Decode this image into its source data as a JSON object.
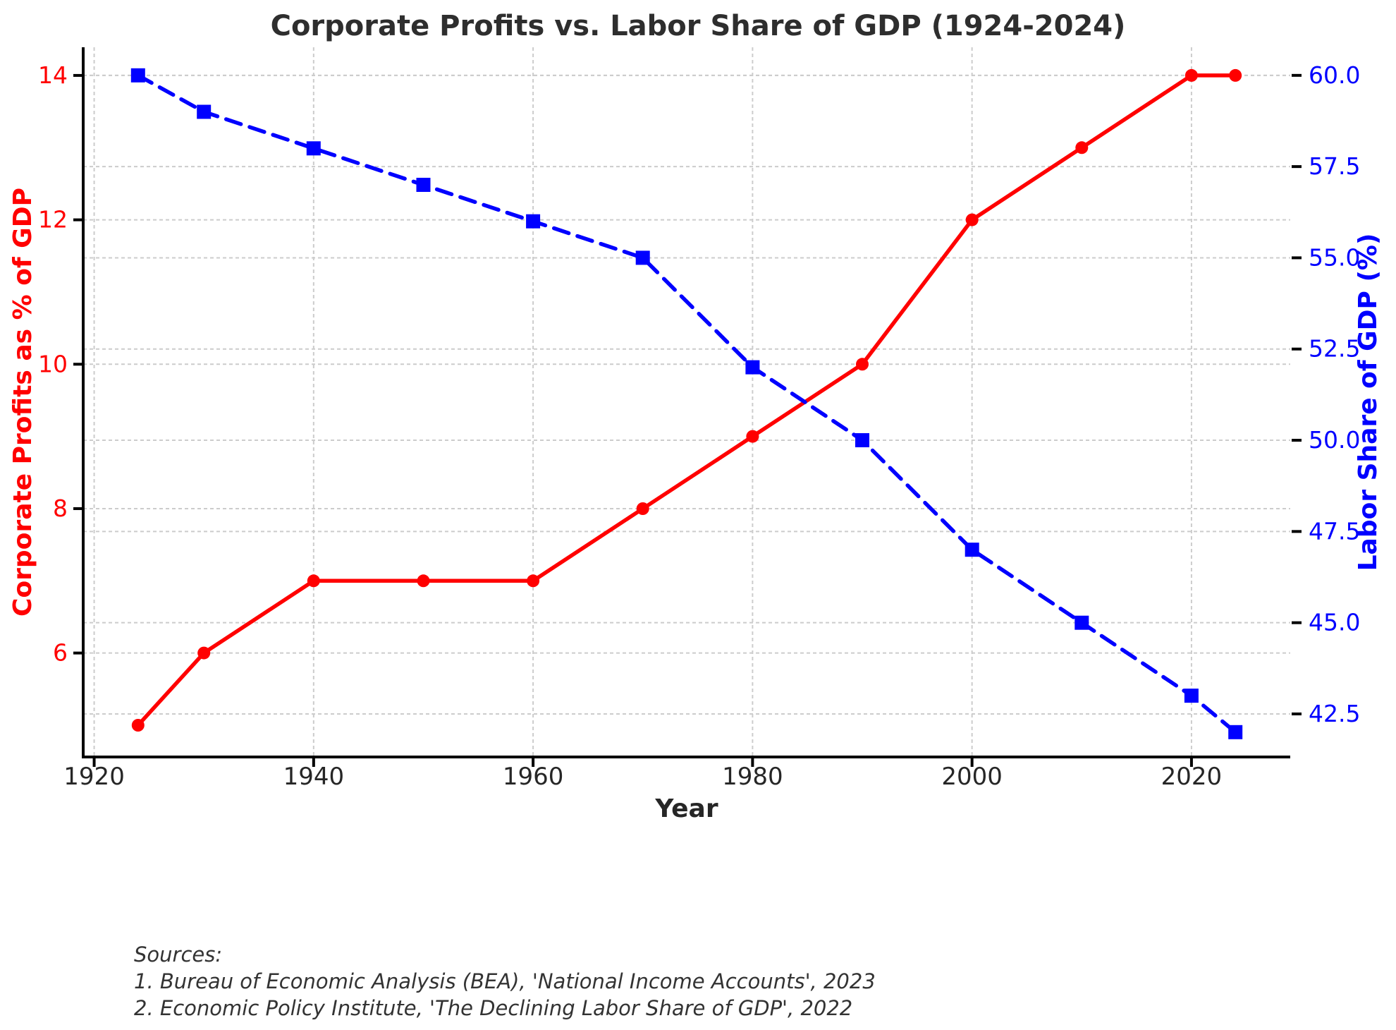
{
  "chart_data": {
    "type": "line",
    "title": "Corporate Profits vs. Labor Share of GDP (1924-2024)",
    "xlabel": "Year",
    "ylabel_left": "Corporate Profits as % of GDP",
    "ylabel_right": "Labor Share of GDP (%)",
    "x": [
      1924,
      1930,
      1940,
      1950,
      1960,
      1970,
      1980,
      1990,
      2000,
      2010,
      2020,
      2024
    ],
    "series": [
      {
        "name": "Corporate Profits as % of GDP",
        "yaxis": "left",
        "color": "#ff0000",
        "line_style": "solid",
        "marker": "circle",
        "values": [
          5.0,
          6.0,
          7.0,
          7.0,
          7.0,
          8.0,
          9.0,
          10.0,
          12.0,
          13.0,
          14.0,
          14.0
        ]
      },
      {
        "name": "Labor Share of GDP (%)",
        "yaxis": "right",
        "color": "#0000ff",
        "line_style": "dashed",
        "marker": "square",
        "values": [
          60.0,
          59.0,
          58.0,
          57.0,
          56.0,
          55.0,
          52.0,
          50.0,
          47.0,
          45.0,
          43.0,
          42.0
        ]
      }
    ],
    "xticks": [
      {
        "value": 1920,
        "label": "1920"
      },
      {
        "value": 1940,
        "label": "1940"
      },
      {
        "value": 1960,
        "label": "1960"
      },
      {
        "value": 1980,
        "label": "1980"
      },
      {
        "value": 2000,
        "label": "2000"
      },
      {
        "value": 2020,
        "label": "2020"
      }
    ],
    "yticks_left": [
      {
        "value": 14,
        "label": "14"
      },
      {
        "value": 12,
        "label": "12"
      },
      {
        "value": 10,
        "label": "10"
      },
      {
        "value": 8,
        "label": "8"
      },
      {
        "value": 6,
        "label": "6"
      }
    ],
    "yticks_right": [
      {
        "value": 60.0,
        "label": "60.0"
      },
      {
        "value": 57.5,
        "label": "57.5"
      },
      {
        "value": 55.0,
        "label": "55.0"
      },
      {
        "value": 52.5,
        "label": "52.5"
      },
      {
        "value": 50.0,
        "label": "50.0"
      },
      {
        "value": 47.5,
        "label": "47.5"
      },
      {
        "value": 45.0,
        "label": "45.0"
      },
      {
        "value": 42.5,
        "label": "42.5"
      }
    ],
    "xlim": [
      1919,
      2029
    ],
    "ylim_left": [
      4.56,
      14.39
    ],
    "ylim_right": [
      41.32,
      60.77
    ],
    "grid": true,
    "legend_position": "none"
  },
  "sources": {
    "heading": "Sources:",
    "line1": "1. Bureau of Economic Analysis (BEA), 'National Income Accounts', 2023",
    "line2": "2. Economic Policy Institute, 'The Declining Labor Share of GDP', 2022"
  },
  "colors": {
    "profits_accent": "#ff0000",
    "labor_accent": "#0000ff",
    "title_text": "#2e2e2e",
    "tick_text": "#262626",
    "grid_line": "#cccccc",
    "spine": "#000000",
    "background": "#ffffff"
  }
}
